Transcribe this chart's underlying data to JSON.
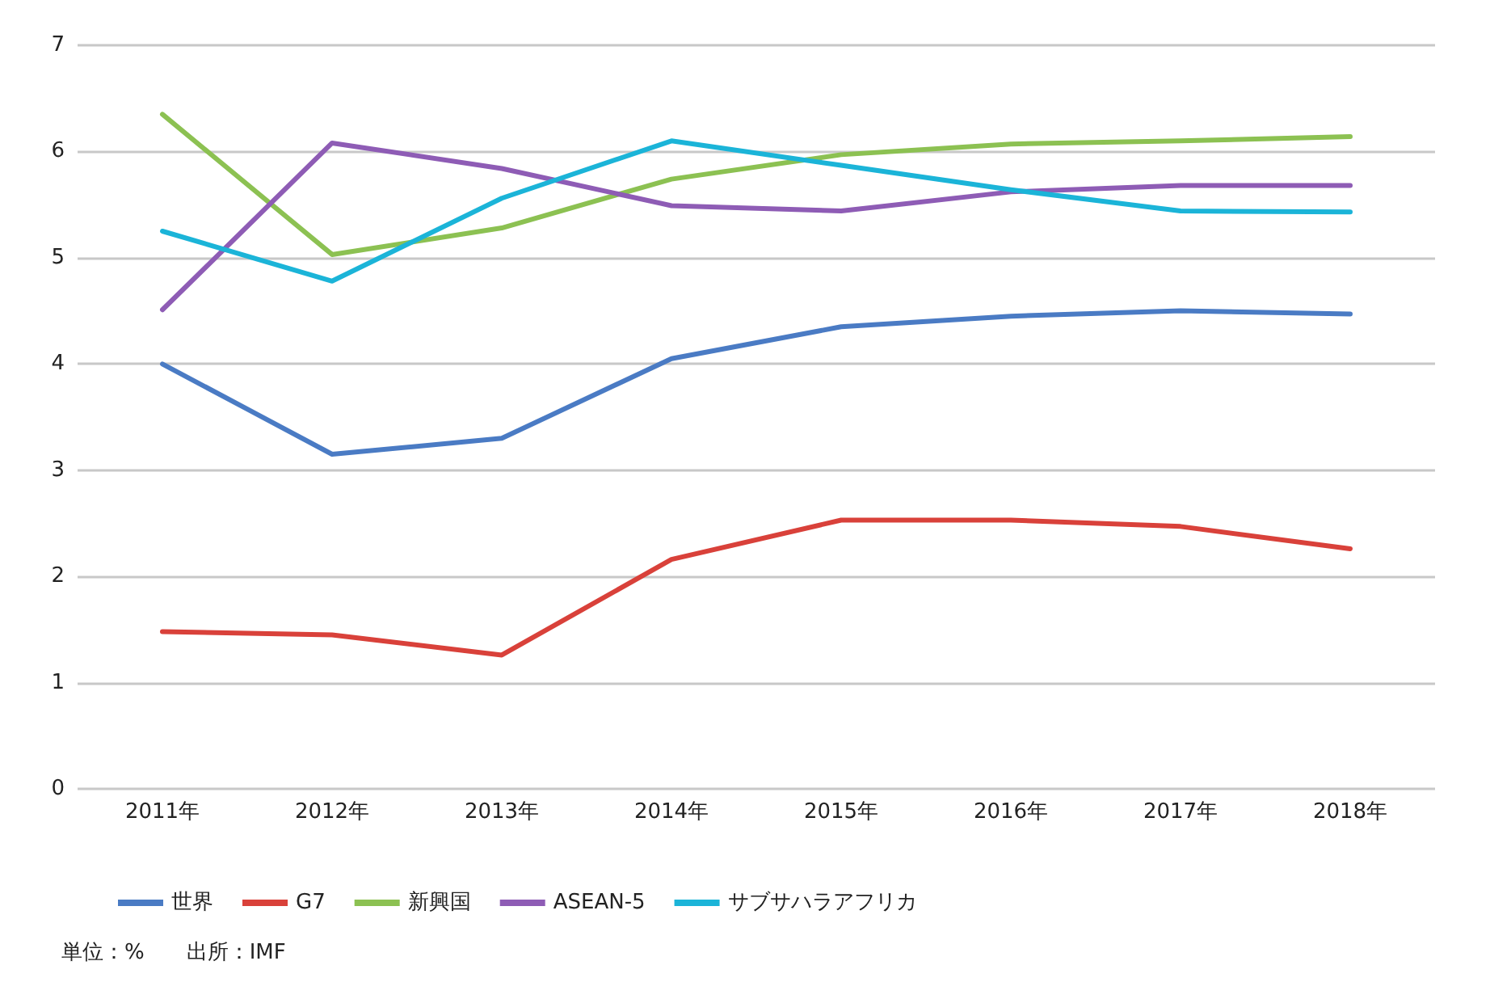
{
  "chart_data": {
    "type": "line",
    "categories": [
      "2011年",
      "2012年",
      "2013年",
      "2014年",
      "2015年",
      "2016年",
      "2017年",
      "2018年"
    ],
    "series": [
      {
        "name": "世界",
        "color": "#4a7bc4",
        "values": [
          4.0,
          3.15,
          3.3,
          4.05,
          4.35,
          4.45,
          4.5,
          4.47
        ]
      },
      {
        "name": "G7",
        "color": "#d9413a",
        "values": [
          1.48,
          1.45,
          1.26,
          2.16,
          2.53,
          2.53,
          2.47,
          2.26
        ]
      },
      {
        "name": "新興国",
        "color": "#8cc152",
        "values": [
          6.35,
          5.03,
          5.28,
          5.74,
          5.97,
          6.07,
          6.1,
          6.14
        ]
      },
      {
        "name": "ASEAN-5",
        "color": "#8e5cb5",
        "values": [
          4.51,
          6.08,
          5.84,
          5.49,
          5.44,
          5.62,
          5.68,
          5.68
        ]
      },
      {
        "name": "サブサハラアフリカ",
        "color": "#1bb4d8",
        "values": [
          5.25,
          4.78,
          5.56,
          6.1,
          5.87,
          5.64,
          5.44,
          5.43
        ]
      }
    ],
    "ylim": [
      0,
      7
    ],
    "yticks": [
      0,
      1,
      2,
      3,
      4,
      5,
      6,
      7
    ],
    "grid": "y",
    "legend": "bottom",
    "marker": "none",
    "line_style": "solid",
    "annotations": [
      "単位：%　　出所：IMF"
    ]
  }
}
